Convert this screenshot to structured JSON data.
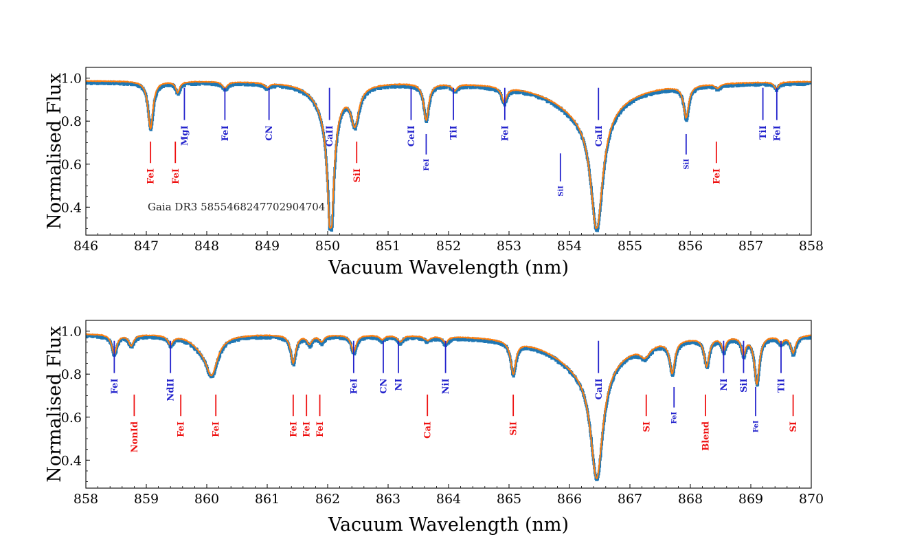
{
  "chart_data": [
    {
      "type": "line",
      "panel": "top",
      "xlabel": "Vacuum Wavelength (nm)",
      "ylabel": "Normalised Flux",
      "xlim": [
        846,
        858
      ],
      "ylim": [
        0.27,
        1.05
      ],
      "xticks": [
        846,
        847,
        848,
        849,
        850,
        851,
        852,
        853,
        854,
        855,
        856,
        857,
        858
      ],
      "yticks": [
        0.4,
        0.6,
        0.8,
        1.0
      ],
      "annotation": "Gaia DR3 5855468247702904704",
      "colors": {
        "observed": "#1f77b4",
        "model": "#ff7f0e",
        "blue_lines": "#2222cc",
        "red_lines": "#ee1111"
      },
      "absorption": [
        {
          "c": 847.07,
          "d": 0.22,
          "w": 0.05
        },
        {
          "c": 847.52,
          "d": 0.05,
          "w": 0.04
        },
        {
          "c": 848.3,
          "d": 0.03,
          "w": 0.05
        },
        {
          "c": 849.0,
          "d": 0.02,
          "w": 0.05
        },
        {
          "c": 850.05,
          "d": 0.62,
          "w": 0.06
        },
        {
          "c": 850.0,
          "d": 0.12,
          "w": 0.25
        },
        {
          "c": 850.45,
          "d": 0.17,
          "w": 0.08
        },
        {
          "c": 851.63,
          "d": 0.17,
          "w": 0.05
        },
        {
          "c": 852.1,
          "d": 0.03,
          "w": 0.05
        },
        {
          "c": 852.92,
          "d": 0.07,
          "w": 0.05
        },
        {
          "c": 854.45,
          "d": 0.55,
          "w": 0.12
        },
        {
          "c": 854.3,
          "d": 0.15,
          "w": 0.65
        },
        {
          "c": 855.93,
          "d": 0.15,
          "w": 0.05
        },
        {
          "c": 856.45,
          "d": 0.02,
          "w": 0.05
        },
        {
          "c": 857.42,
          "d": 0.03,
          "w": 0.04
        }
      ],
      "lines": [
        {
          "label": "FeI",
          "x": 847.07,
          "color": "red",
          "y1": 0.705,
          "y2": 0.605,
          "label_y": 0.58,
          "size": "n"
        },
        {
          "label": "FeI",
          "x": 847.48,
          "color": "red",
          "y1": 0.705,
          "y2": 0.605,
          "label_y": 0.58,
          "size": "n"
        },
        {
          "label": "MgI",
          "x": 847.63,
          "color": "blue",
          "y1": 0.955,
          "y2": 0.805,
          "label_y": 0.78,
          "size": "n"
        },
        {
          "label": "FeI",
          "x": 848.3,
          "color": "blue",
          "y1": 0.955,
          "y2": 0.805,
          "label_y": 0.78,
          "size": "n"
        },
        {
          "label": "CN",
          "x": 849.03,
          "color": "blue",
          "y1": 0.955,
          "y2": 0.805,
          "label_y": 0.78,
          "size": "n"
        },
        {
          "label": "CaII",
          "x": 850.03,
          "color": "blue",
          "y1": 0.955,
          "y2": 0.805,
          "label_y": 0.78,
          "size": "n"
        },
        {
          "label": "SiI",
          "x": 850.48,
          "color": "red",
          "y1": 0.705,
          "y2": 0.605,
          "label_y": 0.58,
          "size": "n"
        },
        {
          "label": "CeII",
          "x": 851.38,
          "color": "blue",
          "y1": 0.955,
          "y2": 0.805,
          "label_y": 0.78,
          "size": "n"
        },
        {
          "label": "FeI",
          "x": 851.63,
          "color": "blue",
          "y1": 0.74,
          "y2": 0.645,
          "label_y": 0.625,
          "size": "s"
        },
        {
          "label": "TiI",
          "x": 852.08,
          "color": "blue",
          "y1": 0.955,
          "y2": 0.805,
          "label_y": 0.78,
          "size": "n"
        },
        {
          "label": "FeI",
          "x": 852.93,
          "color": "blue",
          "y1": 0.955,
          "y2": 0.805,
          "label_y": 0.78,
          "size": "n"
        },
        {
          "label": "SiI",
          "x": 853.85,
          "color": "blue",
          "y1": 0.65,
          "y2": 0.52,
          "label_y": 0.5,
          "size": "s"
        },
        {
          "label": "CaII",
          "x": 854.48,
          "color": "blue",
          "y1": 0.955,
          "y2": 0.805,
          "label_y": 0.78,
          "size": "n"
        },
        {
          "label": "SiI",
          "x": 855.93,
          "color": "blue",
          "y1": 0.74,
          "y2": 0.645,
          "label_y": 0.625,
          "size": "s"
        },
        {
          "label": "FeI",
          "x": 856.43,
          "color": "red",
          "y1": 0.705,
          "y2": 0.605,
          "label_y": 0.58,
          "size": "n"
        },
        {
          "label": "TiI",
          "x": 857.2,
          "color": "blue",
          "y1": 0.955,
          "y2": 0.805,
          "label_y": 0.78,
          "size": "n"
        },
        {
          "label": "FeI",
          "x": 857.43,
          "color": "blue",
          "y1": 0.955,
          "y2": 0.805,
          "label_y": 0.78,
          "size": "n"
        }
      ]
    },
    {
      "type": "line",
      "panel": "bottom",
      "xlabel": "Vacuum Wavelength (nm)",
      "ylabel": "Normalised Flux",
      "xlim": [
        858,
        870
      ],
      "ylim": [
        0.27,
        1.05
      ],
      "xticks": [
        858,
        859,
        860,
        861,
        862,
        863,
        864,
        865,
        866,
        867,
        868,
        869,
        870
      ],
      "yticks": [
        0.4,
        0.6,
        0.8,
        1.0
      ],
      "colors": {
        "observed": "#1f77b4",
        "model": "#ff7f0e",
        "blue_lines": "#2222cc",
        "red_lines": "#ee1111"
      },
      "absorption": [
        {
          "c": 858.47,
          "d": 0.09,
          "w": 0.05
        },
        {
          "c": 858.75,
          "d": 0.05,
          "w": 0.05
        },
        {
          "c": 859.4,
          "d": 0.04,
          "w": 0.05
        },
        {
          "c": 860.08,
          "d": 0.17,
          "w": 0.12
        },
        {
          "c": 859.9,
          "d": 0.04,
          "w": 0.2
        },
        {
          "c": 861.43,
          "d": 0.13,
          "w": 0.05
        },
        {
          "c": 861.7,
          "d": 0.04,
          "w": 0.05
        },
        {
          "c": 861.9,
          "d": 0.03,
          "w": 0.05
        },
        {
          "c": 862.43,
          "d": 0.08,
          "w": 0.05
        },
        {
          "c": 862.9,
          "d": 0.02,
          "w": 0.05
        },
        {
          "c": 863.2,
          "d": 0.03,
          "w": 0.05
        },
        {
          "c": 863.65,
          "d": 0.02,
          "w": 0.06
        },
        {
          "c": 863.95,
          "d": 0.03,
          "w": 0.05
        },
        {
          "c": 865.07,
          "d": 0.15,
          "w": 0.05
        },
        {
          "c": 866.45,
          "d": 0.52,
          "w": 0.12
        },
        {
          "c": 866.3,
          "d": 0.16,
          "w": 0.65
        },
        {
          "c": 867.25,
          "d": 0.05,
          "w": 0.1
        },
        {
          "c": 867.7,
          "d": 0.15,
          "w": 0.05
        },
        {
          "c": 868.27,
          "d": 0.13,
          "w": 0.05
        },
        {
          "c": 868.55,
          "d": 0.06,
          "w": 0.04
        },
        {
          "c": 868.88,
          "d": 0.08,
          "w": 0.04
        },
        {
          "c": 869.1,
          "d": 0.22,
          "w": 0.05
        },
        {
          "c": 869.5,
          "d": 0.03,
          "w": 0.05
        },
        {
          "c": 869.7,
          "d": 0.08,
          "w": 0.05
        }
      ],
      "lines": [
        {
          "label": "FeI",
          "x": 858.47,
          "color": "blue",
          "y1": 0.955,
          "y2": 0.805,
          "label_y": 0.78,
          "size": "n"
        },
        {
          "label": "NonId",
          "x": 858.8,
          "color": "red",
          "y1": 0.705,
          "y2": 0.605,
          "label_y": 0.58,
          "size": "n"
        },
        {
          "label": "NdII",
          "x": 859.4,
          "color": "blue",
          "y1": 0.955,
          "y2": 0.805,
          "label_y": 0.78,
          "size": "n"
        },
        {
          "label": "FeI",
          "x": 859.57,
          "color": "red",
          "y1": 0.705,
          "y2": 0.605,
          "label_y": 0.58,
          "size": "n"
        },
        {
          "label": "FeI",
          "x": 860.15,
          "color": "red",
          "y1": 0.705,
          "y2": 0.605,
          "label_y": 0.58,
          "size": "n"
        },
        {
          "label": "FeI",
          "x": 861.43,
          "color": "red",
          "y1": 0.705,
          "y2": 0.605,
          "label_y": 0.58,
          "size": "n"
        },
        {
          "label": "FeI",
          "x": 861.65,
          "color": "red",
          "y1": 0.705,
          "y2": 0.605,
          "label_y": 0.58,
          "size": "n"
        },
        {
          "label": "FeI",
          "x": 861.87,
          "color": "red",
          "y1": 0.705,
          "y2": 0.605,
          "label_y": 0.58,
          "size": "n"
        },
        {
          "label": "FeI",
          "x": 862.43,
          "color": "blue",
          "y1": 0.955,
          "y2": 0.805,
          "label_y": 0.78,
          "size": "n"
        },
        {
          "label": "CN",
          "x": 862.92,
          "color": "blue",
          "y1": 0.955,
          "y2": 0.805,
          "label_y": 0.78,
          "size": "n"
        },
        {
          "label": "NI",
          "x": 863.17,
          "color": "blue",
          "y1": 0.955,
          "y2": 0.805,
          "label_y": 0.78,
          "size": "n"
        },
        {
          "label": "CaI",
          "x": 863.65,
          "color": "red",
          "y1": 0.705,
          "y2": 0.605,
          "label_y": 0.58,
          "size": "n"
        },
        {
          "label": "NiI",
          "x": 863.95,
          "color": "blue",
          "y1": 0.955,
          "y2": 0.805,
          "label_y": 0.78,
          "size": "n"
        },
        {
          "label": "SiI",
          "x": 865.07,
          "color": "red",
          "y1": 0.705,
          "y2": 0.605,
          "label_y": 0.58,
          "size": "n"
        },
        {
          "label": "CaII",
          "x": 866.48,
          "color": "blue",
          "y1": 0.955,
          "y2": 0.805,
          "label_y": 0.78,
          "size": "n"
        },
        {
          "label": "SI",
          "x": 867.27,
          "color": "red",
          "y1": 0.705,
          "y2": 0.605,
          "label_y": 0.58,
          "size": "n"
        },
        {
          "label": "FeI",
          "x": 867.73,
          "color": "blue",
          "y1": 0.74,
          "y2": 0.645,
          "label_y": 0.625,
          "size": "s"
        },
        {
          "label": "Blend",
          "x": 868.25,
          "color": "red",
          "y1": 0.705,
          "y2": 0.605,
          "label_y": 0.58,
          "size": "n"
        },
        {
          "label": "NI",
          "x": 868.55,
          "color": "blue",
          "y1": 0.955,
          "y2": 0.805,
          "label_y": 0.78,
          "size": "n"
        },
        {
          "label": "SiI",
          "x": 868.88,
          "color": "blue",
          "y1": 0.955,
          "y2": 0.805,
          "label_y": 0.78,
          "size": "n"
        },
        {
          "label": "FeI",
          "x": 869.08,
          "color": "blue",
          "y1": 0.74,
          "y2": 0.605,
          "label_y": 0.585,
          "size": "s"
        },
        {
          "label": "TiI",
          "x": 869.5,
          "color": "blue",
          "y1": 0.955,
          "y2": 0.805,
          "label_y": 0.78,
          "size": "n"
        },
        {
          "label": "SI",
          "x": 869.7,
          "color": "red",
          "y1": 0.705,
          "y2": 0.605,
          "label_y": 0.58,
          "size": "n"
        }
      ]
    }
  ]
}
